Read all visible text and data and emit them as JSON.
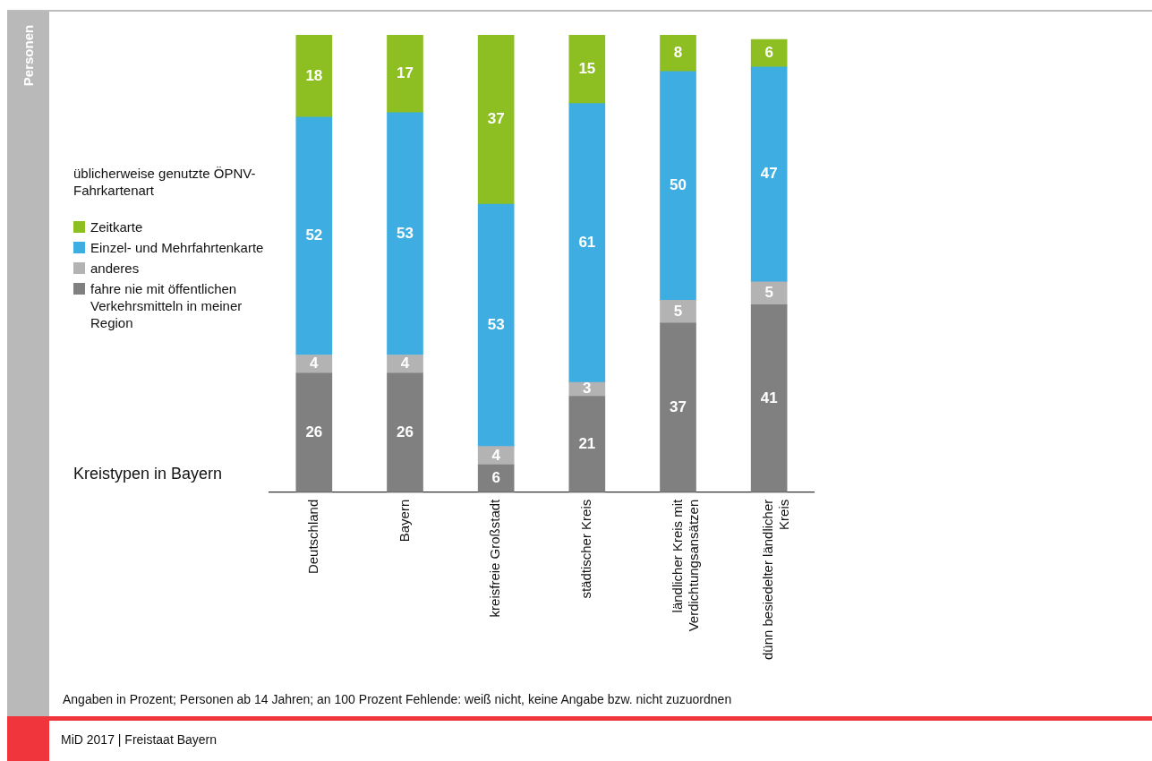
{
  "chart_data": {
    "type": "bar",
    "stacked": true,
    "data_labels": true,
    "grid": false,
    "tick_labels": "x",
    "legend": "left",
    "legend_title": "üblicherweise genutzte ÖPNV-Fahrkartenart",
    "xlabel": "Kreistypen in Bayern",
    "ylim": [
      0,
      100
    ],
    "categories": [
      "Deutschland",
      "Bayern",
      "kreisfreie Großstadt",
      "städtischer Kreis",
      "ländlicher Kreis mit\nVerdichtungsansätzen",
      "dünn besiedelter ländlicher\nKreis"
    ],
    "series": [
      {
        "name": "fahre nie mit öffentlichen Verkehrsmitteln in meiner Region",
        "color": "#808080",
        "values": [
          26,
          26,
          6,
          21,
          37,
          41
        ]
      },
      {
        "name": "anderes",
        "color": "#b3b3b3",
        "values": [
          4,
          4,
          4,
          3,
          5,
          5
        ]
      },
      {
        "name": "Einzel- und Mehrfahrtenkarte",
        "color": "#3dade2",
        "values": [
          52,
          53,
          53,
          61,
          50,
          47
        ]
      },
      {
        "name": "Zeitkarte",
        "color": "#8dbe22",
        "values": [
          18,
          17,
          37,
          15,
          8,
          6
        ]
      }
    ],
    "annotations": [
      "Personen",
      "Angaben in Prozent; Personen ab 14 Jahren; an 100 Prozent Fehlende: weiß nicht, keine Angabe bzw. nicht zuzuordnen",
      "MiD 2017 | Freistaat Bayern"
    ]
  }
}
